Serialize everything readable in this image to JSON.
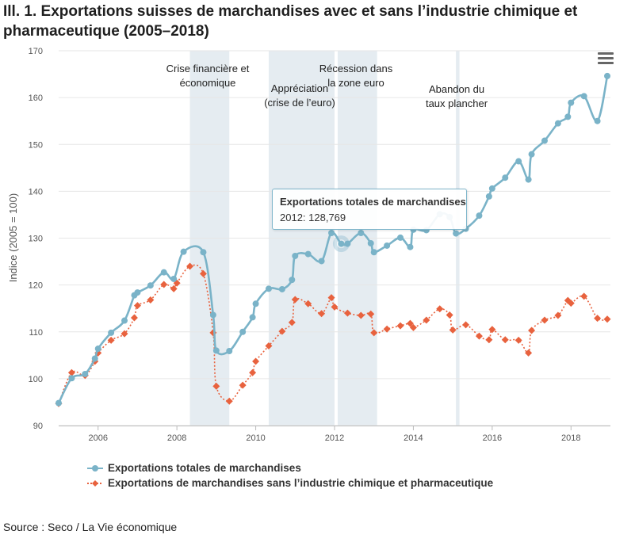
{
  "title": "Ill. 1. Exportations suisses de marchandises avec et sans l’industrie chimique et pharmaceutique (2005–2018)",
  "source": "Source : Seco / La Vie économique",
  "tooltip": {
    "series": "Exportations totales de marchandises",
    "value": "2012: 128,769"
  },
  "chart_data": {
    "type": "line",
    "title": "Ill. 1. Exportations suisses de marchandises avec et sans l’industrie chimique et pharmaceutique (2005–2018)",
    "ylabel": "Indice (2005 = 100)",
    "xlabel": "",
    "ylim": [
      90,
      170
    ],
    "yticks": [
      90,
      100,
      110,
      120,
      130,
      140,
      150,
      160,
      170
    ],
    "xlim": [
      2005.0,
      2019.0
    ],
    "xticks": [
      2006,
      2008,
      2010,
      2012,
      2014,
      2016,
      2018
    ],
    "grid": "horizontal",
    "legend_position": "bottom-left",
    "colors": {
      "total": "#7ab3c8",
      "sans_chimie": "#e8623e",
      "band": "#e5ecf1"
    },
    "bands": [
      {
        "from": 2008.33,
        "to": 2009.33,
        "label": [
          "Crise financière et",
          "économique"
        ]
      },
      {
        "from": 2010.33,
        "to": 2012.0,
        "label": [
          "Appréciation",
          "(crise de l’euro)"
        ]
      },
      {
        "from": 2012.08,
        "to": 2013.08,
        "label": [
          "Récession dans",
          "la zone euro"
        ]
      },
      {
        "from": 2015.08,
        "to": 2015.17,
        "label": [
          "Abandon du",
          "taux plancher"
        ]
      }
    ],
    "series": [
      {
        "name": "Exportations totales de marchandises",
        "x": [
          2005.0,
          2005.33,
          2005.67,
          2005.92,
          2006.0,
          2006.33,
          2006.67,
          2006.92,
          2007.0,
          2007.33,
          2007.67,
          2007.92,
          2008.17,
          2008.67,
          2008.92,
          2009.0,
          2009.33,
          2009.67,
          2009.92,
          2010.0,
          2010.33,
          2010.67,
          2010.92,
          2011.0,
          2011.33,
          2011.67,
          2011.92,
          2012.17,
          2012.33,
          2012.67,
          2012.92,
          2013.0,
          2013.33,
          2013.67,
          2013.92,
          2014.0,
          2014.33,
          2014.67,
          2014.92,
          2015.08,
          2015.33,
          2015.67,
          2015.92,
          2016.0,
          2016.33,
          2016.67,
          2016.92,
          2017.0,
          2017.33,
          2017.67,
          2017.92,
          2018.0,
          2018.33,
          2018.67,
          2018.92
        ],
        "values": [
          94.8,
          100.1,
          101.0,
          104.3,
          106.4,
          109.8,
          112.4,
          117.8,
          118.4,
          119.9,
          122.7,
          121.3,
          127.1,
          127.0,
          113.6,
          106.0,
          105.9,
          110.0,
          113.1,
          116.0,
          119.2,
          119.1,
          121.1,
          126.2,
          126.6,
          125.1,
          131.1,
          128.8,
          128.8,
          131.1,
          128.9,
          127.0,
          128.4,
          130.1,
          128.1,
          131.8,
          131.7,
          135.1,
          134.5,
          131.0,
          132.0,
          134.8,
          138.9,
          140.6,
          142.9,
          146.4,
          142.5,
          147.9,
          150.8,
          154.5,
          155.9,
          158.9,
          160.3,
          155.0,
          164.6
        ]
      },
      {
        "name": "Exportations de marchandises sans l’industrie chimique et pharmaceutique",
        "x": [
          2005.0,
          2005.33,
          2005.67,
          2005.92,
          2006.0,
          2006.33,
          2006.67,
          2006.92,
          2007.0,
          2007.33,
          2007.67,
          2007.92,
          2008.0,
          2008.33,
          2008.67,
          2008.92,
          2009.0,
          2009.33,
          2009.67,
          2009.92,
          2010.0,
          2010.33,
          2010.67,
          2010.92,
          2011.0,
          2011.33,
          2011.67,
          2011.92,
          2012.0,
          2012.33,
          2012.67,
          2012.92,
          2013.0,
          2013.33,
          2013.67,
          2013.92,
          2014.0,
          2014.33,
          2014.67,
          2014.92,
          2015.0,
          2015.33,
          2015.67,
          2015.92,
          2016.0,
          2016.33,
          2016.67,
          2016.92,
          2017.0,
          2017.33,
          2017.67,
          2017.92,
          2018.0,
          2018.33,
          2018.67,
          2018.92
        ],
        "values": [
          94.7,
          101.3,
          100.7,
          103.7,
          105.5,
          108.2,
          109.6,
          113.0,
          115.6,
          116.8,
          120.1,
          119.2,
          120.4,
          124.0,
          122.4,
          109.8,
          98.4,
          95.2,
          98.6,
          101.3,
          103.7,
          107.0,
          110.1,
          112.0,
          116.9,
          116.0,
          113.9,
          117.3,
          115.3,
          114.0,
          113.5,
          113.8,
          109.8,
          110.6,
          111.3,
          111.8,
          110.9,
          112.5,
          114.9,
          113.6,
          110.4,
          111.5,
          109.1,
          108.3,
          110.5,
          108.3,
          108.2,
          105.5,
          110.3,
          112.5,
          113.5,
          116.7,
          116.1,
          117.6,
          112.9,
          112.7
        ]
      }
    ]
  }
}
